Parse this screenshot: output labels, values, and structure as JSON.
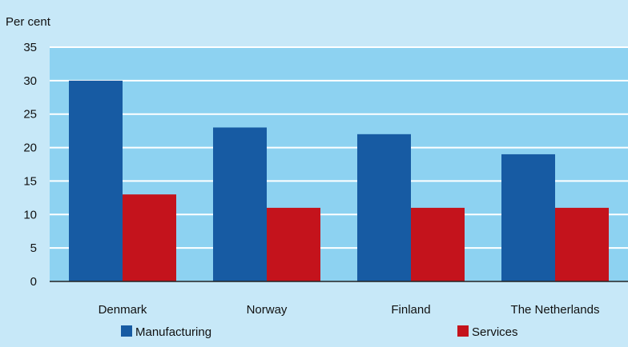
{
  "chart_data": {
    "type": "bar",
    "unit_label": "Per cent",
    "categories": [
      "Denmark",
      "Norway",
      "Finland",
      "The Netherlands"
    ],
    "series": [
      {
        "name": "Manufacturing",
        "values": [
          30,
          23,
          22,
          19
        ],
        "color": "#175ba3"
      },
      {
        "name": "Services",
        "values": [
          13,
          11,
          11,
          11
        ],
        "color": "#c4131c"
      }
    ],
    "ylim": [
      0,
      35
    ],
    "yticks": [
      0,
      5,
      10,
      15,
      20,
      25,
      30,
      35
    ],
    "grid": true,
    "legend_position": "bottom"
  },
  "colors": {
    "frame_background": "#c7e8f8",
    "plot_background": "#8dd2f1",
    "gridline": "#ffffff",
    "axis": "#222222"
  }
}
